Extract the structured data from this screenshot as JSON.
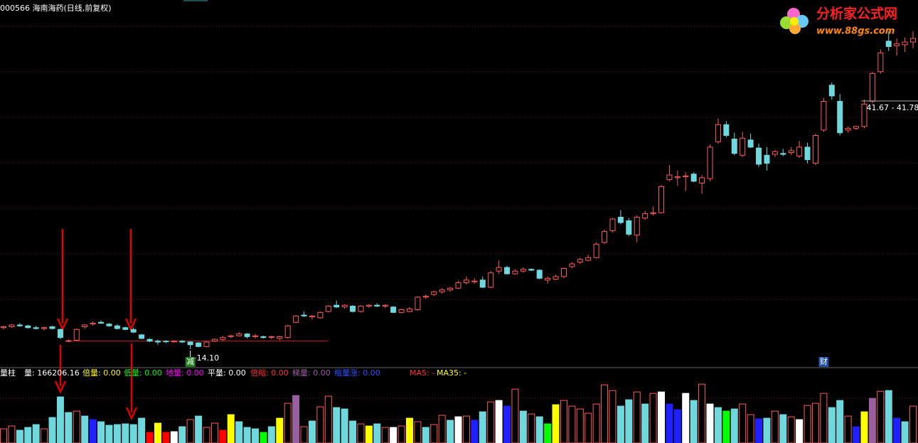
{
  "chart_data": {
    "type": "candlestick",
    "title": "000566 海南海药(日线,前复权)",
    "logo": {
      "name": "分析家公式网",
      "url": "www.88gs.com"
    },
    "ylim": [
      13.0,
      51.4
    ],
    "up_color": "#ff5a5a",
    "down_color": "#6fd8dc",
    "ohlc": [
      [
        16.5,
        16.7,
        16.3,
        16.6
      ],
      [
        16.6,
        16.9,
        16.5,
        16.8
      ],
      [
        16.8,
        17.0,
        16.6,
        16.7
      ],
      [
        16.7,
        16.8,
        16.4,
        16.5
      ],
      [
        16.5,
        16.7,
        16.3,
        16.4
      ],
      [
        16.4,
        16.6,
        16.2,
        16.5
      ],
      [
        16.6,
        16.7,
        16.3,
        16.4
      ],
      [
        16.3,
        16.4,
        15.2,
        15.4
      ],
      [
        15.0,
        15.2,
        14.9,
        15.05
      ],
      [
        15.1,
        16.4,
        15.0,
        16.3
      ],
      [
        16.6,
        16.9,
        16.4,
        16.8
      ],
      [
        16.9,
        17.2,
        16.7,
        17.0
      ],
      [
        17.1,
        17.3,
        16.9,
        17.0
      ],
      [
        16.9,
        17.0,
        16.6,
        16.7
      ],
      [
        16.7,
        16.9,
        16.3,
        16.4
      ],
      [
        16.5,
        16.6,
        16.2,
        16.3
      ],
      [
        16.3,
        16.5,
        15.9,
        16.0
      ],
      [
        15.7,
        15.8,
        15.2,
        15.3
      ],
      [
        15.2,
        15.3,
        14.9,
        15.0
      ],
      [
        15.0,
        15.2,
        14.6,
        14.9
      ],
      [
        15.0,
        15.1,
        14.8,
        14.95
      ],
      [
        14.95,
        15.05,
        14.85,
        15.0
      ],
      [
        15.0,
        15.1,
        14.8,
        14.9
      ],
      [
        14.9,
        15.0,
        14.1,
        14.6
      ],
      [
        14.8,
        14.9,
        14.3,
        14.4
      ],
      [
        14.4,
        15.0,
        14.3,
        14.9
      ],
      [
        15.0,
        15.3,
        14.9,
        15.2
      ],
      [
        15.2,
        15.6,
        15.0,
        15.4
      ],
      [
        15.5,
        15.7,
        15.3,
        15.6
      ],
      [
        15.6,
        16.0,
        15.5,
        15.8
      ],
      [
        15.8,
        15.9,
        15.3,
        15.5
      ],
      [
        15.5,
        15.8,
        15.3,
        15.6
      ],
      [
        15.5,
        15.6,
        15.3,
        15.4
      ],
      [
        15.4,
        15.6,
        15.2,
        15.5
      ],
      [
        15.3,
        15.6,
        15.1,
        15.5
      ],
      [
        15.4,
        16.8,
        15.3,
        16.7
      ],
      [
        17.1,
        17.9,
        17.0,
        17.8
      ],
      [
        17.9,
        18.3,
        17.7,
        17.8
      ],
      [
        17.7,
        17.9,
        17.4,
        17.8
      ],
      [
        17.6,
        18.3,
        17.5,
        18.2
      ],
      [
        18.3,
        19.0,
        18.2,
        18.9
      ],
      [
        19.0,
        19.5,
        18.7,
        18.8
      ],
      [
        18.8,
        19.1,
        18.6,
        19.0
      ],
      [
        18.9,
        19.0,
        18.2,
        18.3
      ],
      [
        18.3,
        19.0,
        18.2,
        18.9
      ],
      [
        18.9,
        19.1,
        18.7,
        19.0
      ],
      [
        19.0,
        19.2,
        18.8,
        18.9
      ],
      [
        18.9,
        19.1,
        18.7,
        19.0
      ],
      [
        18.8,
        18.9,
        18.1,
        18.2
      ],
      [
        18.2,
        18.6,
        18.1,
        18.5
      ],
      [
        18.3,
        18.8,
        18.2,
        18.6
      ],
      [
        18.5,
        20.0,
        18.4,
        19.9
      ],
      [
        19.9,
        20.2,
        19.7,
        20.0
      ],
      [
        20.2,
        20.6,
        20.0,
        20.5
      ],
      [
        20.5,
        20.9,
        20.3,
        20.7
      ],
      [
        20.7,
        21.0,
        20.5,
        20.9
      ],
      [
        20.9,
        21.7,
        20.8,
        21.5
      ],
      [
        21.5,
        22.2,
        21.3,
        21.8
      ],
      [
        21.6,
        22.0,
        21.4,
        21.7
      ],
      [
        21.8,
        22.2,
        20.9,
        21.0
      ],
      [
        21.0,
        22.8,
        20.9,
        22.6
      ],
      [
        22.8,
        24.0,
        22.5,
        23.2
      ],
      [
        23.2,
        23.4,
        22.4,
        22.5
      ],
      [
        22.5,
        23.0,
        22.4,
        22.8
      ],
      [
        22.8,
        23.2,
        22.6,
        23.0
      ],
      [
        23.0,
        23.1,
        22.8,
        22.9
      ],
      [
        22.9,
        23.0,
        21.9,
        22.0
      ],
      [
        21.8,
        22.2,
        21.4,
        22.0
      ],
      [
        21.9,
        22.4,
        21.8,
        22.2
      ],
      [
        22.2,
        23.2,
        22.0,
        23.1
      ],
      [
        23.3,
        23.8,
        23.1,
        23.6
      ],
      [
        23.8,
        24.3,
        23.6,
        24.1
      ],
      [
        24.0,
        24.6,
        23.9,
        24.3
      ],
      [
        24.3,
        26.0,
        24.2,
        25.8
      ],
      [
        26.0,
        27.4,
        25.8,
        27.2
      ],
      [
        27.3,
        28.7,
        27.1,
        28.6
      ],
      [
        28.8,
        29.6,
        28.0,
        28.2
      ],
      [
        28.4,
        28.7,
        26.7,
        26.9
      ],
      [
        26.8,
        29.0,
        26.0,
        28.8
      ],
      [
        28.7,
        29.5,
        28.5,
        29.2
      ],
      [
        29.2,
        30.0,
        29.0,
        29.3
      ],
      [
        29.3,
        32.4,
        29.2,
        32.2
      ],
      [
        33.0,
        34.6,
        32.8,
        33.5
      ],
      [
        33.2,
        34.0,
        32.3,
        33.3
      ],
      [
        33.3,
        33.8,
        31.7,
        33.4
      ],
      [
        33.6,
        33.8,
        32.7,
        32.8
      ],
      [
        32.6,
        33.5,
        31.4,
        33.2
      ],
      [
        33.1,
        36.9,
        32.8,
        36.6
      ],
      [
        37.2,
        39.8,
        37.0,
        39.1
      ],
      [
        39.1,
        39.5,
        37.7,
        37.9
      ],
      [
        37.5,
        38.2,
        35.7,
        35.9
      ],
      [
        35.7,
        38.3,
        35.5,
        37.6
      ],
      [
        37.4,
        38.1,
        36.5,
        36.6
      ],
      [
        36.5,
        37.0,
        34.4,
        34.7
      ],
      [
        35.7,
        36.6,
        34.0,
        34.8
      ],
      [
        35.8,
        36.3,
        35.5,
        36.1
      ],
      [
        35.9,
        36.4,
        35.6,
        35.8
      ],
      [
        36.0,
        36.6,
        35.7,
        36.2
      ],
      [
        35.6,
        37.3,
        35.4,
        36.6
      ],
      [
        36.6,
        37.1,
        34.8,
        35.2
      ],
      [
        34.8,
        38.1,
        34.6,
        37.9
      ],
      [
        38.5,
        42.1,
        38.3,
        41.7
      ],
      [
        43.5,
        43.8,
        41.9,
        42.3
      ],
      [
        41.7,
        42.5,
        37.9,
        38.2
      ],
      [
        38.5,
        38.9,
        38.2,
        38.7
      ],
      [
        38.7,
        39.0,
        38.5,
        38.9
      ],
      [
        38.9,
        41.9,
        38.7,
        41.4
      ],
      [
        41.7,
        45.0,
        41.5,
        44.8
      ],
      [
        45.0,
        47.5,
        44.8,
        47.1
      ],
      [
        48.4,
        49.5,
        47.3,
        47.8
      ],
      [
        47.9,
        48.7,
        46.8,
        48.1
      ],
      [
        48.0,
        48.8,
        47.2,
        48.3
      ],
      [
        48.3,
        49.5,
        47.6,
        48.7
      ]
    ],
    "support": 15.0,
    "annotations": [
      {
        "text": "14.10",
        "color": "#ffffff"
      },
      {
        "text": "41.67 - 41.78",
        "color": "#ffffff"
      }
    ],
    "events": [
      {
        "text": "减",
        "color": "#1e7d1e"
      },
      {
        "text": "财",
        "color": "#1e4f9a"
      }
    ],
    "volume_ylim": [
      0,
      400000
    ],
    "volume": [
      76000,
      91200,
      68400,
      83600,
      98800,
      76000,
      136800,
      247000,
      163400,
      171000,
      144400,
      125400,
      114000,
      95000,
      98800,
      102600,
      98800,
      133000,
      57000,
      106400,
      57000,
      60800,
      87400,
      125400,
      144400,
      83600,
      106400,
      68400,
      152000,
      114000,
      83600,
      76000,
      57000,
      87400,
      133000,
      212800,
      254600,
      87400,
      117800,
      193800,
      250800,
      190000,
      182400,
      117800,
      102600,
      91200,
      102600,
      83600,
      83600,
      91200,
      133000,
      114000,
      83600,
      98800,
      148200,
      121600,
      140600,
      144400,
      121600,
      167200,
      220400,
      228000,
      197600,
      288800,
      171000,
      155800,
      140600,
      102600,
      205200,
      228000,
      197600,
      182400,
      159600,
      209000,
      311600,
      281200,
      197600,
      231800,
      273600,
      209000,
      266000,
      273600,
      209000,
      178600,
      266000,
      228000,
      315400,
      209000,
      190000,
      171000,
      182400,
      209000,
      152000,
      129200,
      133000,
      171000,
      152000,
      140600,
      125400,
      201400,
      212800,
      266000,
      190000,
      228000,
      144400,
      87400,
      167200,
      239400,
      277400,
      281200,
      133000,
      114000,
      197600
    ],
    "volume_colors": [
      "#ff5a5a",
      "#ff5a5a",
      "#6fd8dc",
      "#6fd8dc",
      "#6fd8dc",
      "#ff5a5a",
      "#6fd8dc",
      "#6fd8dc",
      "#6fd8dc",
      "#ff5a5a",
      "#6fd8dc",
      "#2020ff",
      "#6fd8dc",
      "#6fd8dc",
      "#6fd8dc",
      "#6fd8dc",
      "#6fd8dc",
      "#6fd8dc",
      "#ff0000",
      "#ffff00",
      "#ff0000",
      "#ffffff",
      "#6fd8dc",
      "#ff5a5a",
      "#6fd8dc",
      "#ff5a5a",
      "#ff5a5a",
      "#ff0000",
      "#ffff00",
      "#6fd8dc",
      "#6fd8dc",
      "#6fd8dc",
      "#00ff00",
      "#6fd8dc",
      "#ffff00",
      "#ff5a5a",
      "#9a5fa0",
      "#ff5a5a",
      "#6fd8dc",
      "#ff5a5a",
      "#ff5a5a",
      "#6fd8dc",
      "#6fd8dc",
      "#6fd8dc",
      "#ff5a5a",
      "#ffff00",
      "#6fd8dc",
      "#ff5a5a",
      "#ffffff",
      "#ff5a5a",
      "#ffff00",
      "#ff5a5a",
      "#6fd8dc",
      "#ff5a5a",
      "#ff5a5a",
      "#6fd8dc",
      "#ffffff",
      "#ff5a5a",
      "#2020ff",
      "#6fd8dc",
      "#ff5a5a",
      "#ffffff",
      "#2020ff",
      "#ff5a5a",
      "#6fd8dc",
      "#ff5a5a",
      "#6fd8dc",
      "#00ff00",
      "#ffff00",
      "#ff5a5a",
      "#ff5a5a",
      "#ff5a5a",
      "#ff5a5a",
      "#ff5a5a",
      "#ff5a5a",
      "#ff5a5a",
      "#6fd8dc",
      "#6fd8dc",
      "#ff5a5a",
      "#6fd8dc",
      "#ff5a5a",
      "#ffffff",
      "#2020ff",
      "#2020ff",
      "#ffffff",
      "#6fd8dc",
      "#ff5a5a",
      "#ffffff",
      "#6fd8dc",
      "#00ff00",
      "#6fd8dc",
      "#ff5a5a",
      "#ff5a5a",
      "#2020ff",
      "#6fd8dc",
      "#ff5a5a",
      "#6fd8dc",
      "#ff5a5a",
      "#ffffff",
      "#ff5a5a",
      "#ff5a5a",
      "#ff5a5a",
      "#6fd8dc",
      "#6fd8dc",
      "#ff5a5a",
      "#2020ff",
      "#ffff00",
      "#9a5fa0",
      "#ff5a5a",
      "#6fd8dc",
      "#2020ff",
      "#6fd8dc",
      "#ff5a5a"
    ],
    "volume_legend": [
      {
        "text": "量柱",
        "color": "#ffffff"
      },
      {
        "text": "量: 166206.16",
        "color": "#ffffff"
      },
      {
        "text": "倍量: 0.00",
        "color": "#ffff00"
      },
      {
        "text": "低量: 0.00",
        "color": "#00ff00"
      },
      {
        "text": "地量: 0.00",
        "color": "#ff00ff"
      },
      {
        "text": "平量: 0.00",
        "color": "#ffffff"
      },
      {
        "text": "倍缩: 0.00",
        "color": "#ff3030"
      },
      {
        "text": "梯量: 0.00",
        "color": "#9a5fa0"
      },
      {
        "text": "缩量涨: 0.00",
        "color": "#3050ff"
      },
      {
        "text": "MA5: -",
        "color": "#ff3030"
      },
      {
        "text": "MA35: -",
        "color": "#ffff00"
      }
    ]
  }
}
